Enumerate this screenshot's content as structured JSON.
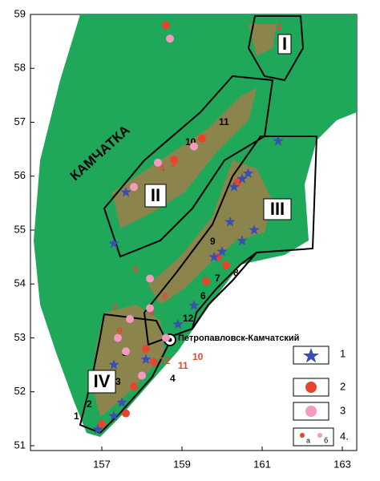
{
  "map": {
    "name": "КАМЧАТКА",
    "city": "Петропавловск-Камчатский",
    "xlim": [
      155.22,
      163.36
    ],
    "ylim": [
      50.91,
      59
    ],
    "xticks": [
      157,
      159,
      161,
      163
    ],
    "yticks": [
      51,
      52,
      53,
      54,
      55,
      56,
      57,
      58,
      59
    ],
    "regions": [
      "I",
      "II",
      "III",
      "IV"
    ],
    "black_numbers": [
      "11",
      "10",
      "9",
      "7",
      "8",
      "6",
      "12",
      "5",
      "3",
      "4",
      "2",
      "1"
    ],
    "red_numbers": [
      "2",
      "4",
      "3",
      "5",
      "6",
      "8",
      "7",
      "9",
      "10",
      "11",
      "12"
    ],
    "stars": [
      [
        161.4,
        56.65
      ],
      [
        157.6,
        55.7
      ],
      [
        157.3,
        54.75
      ],
      [
        160.5,
        55.95
      ],
      [
        160.3,
        55.8
      ],
      [
        160.65,
        56.05
      ],
      [
        160.8,
        55.0
      ],
      [
        160.2,
        55.15
      ],
      [
        160.0,
        54.6
      ],
      [
        159.8,
        54.5
      ],
      [
        159.3,
        53.6
      ],
      [
        158.9,
        53.25
      ],
      [
        157.3,
        52.5
      ],
      [
        157.5,
        51.8
      ],
      [
        157.3,
        51.55
      ],
      [
        156.9,
        51.3
      ],
      [
        158.1,
        52.6
      ],
      [
        160.5,
        54.8
      ]
    ],
    "red_circles": [
      [
        158.6,
        58.8
      ],
      [
        159.5,
        56.7
      ],
      [
        158.8,
        56.3
      ],
      [
        159.9,
        54.5
      ],
      [
        160.1,
        54.35
      ],
      [
        159.6,
        54.05
      ],
      [
        158.1,
        52.8
      ],
      [
        158.3,
        52.55
      ],
      [
        157.8,
        52.1
      ],
      [
        157.0,
        51.4
      ],
      [
        157.6,
        51.6
      ],
      [
        160.4,
        55.9
      ]
    ],
    "pink_circles": [
      [
        158.7,
        58.55
      ],
      [
        158.4,
        56.25
      ],
      [
        157.8,
        55.8
      ],
      [
        158.2,
        54.1
      ],
      [
        157.7,
        53.35
      ],
      [
        158.2,
        53.55
      ],
      [
        158.6,
        53.0
      ],
      [
        157.4,
        53.0
      ],
      [
        157.6,
        52.75
      ],
      [
        159.3,
        56.55
      ],
      [
        158.0,
        52.3
      ]
    ],
    "legend": [
      "1",
      "2",
      "3",
      "4."
    ],
    "legend_sub": [
      "а",
      "б"
    ]
  }
}
